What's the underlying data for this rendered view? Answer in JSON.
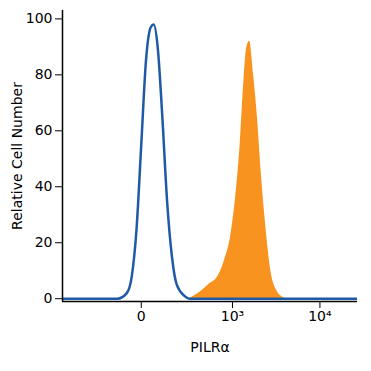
{
  "chart_data": {
    "type": "line",
    "x_label": "PILRα",
    "y_label": "Relative Cell Number",
    "log": "x",
    "x": [
      -700,
      -92,
      -49,
      -30,
      -14,
      0,
      14,
      30,
      41,
      57,
      78,
      102,
      130,
      161,
      219,
      262,
      310,
      364,
      495,
      660,
      804,
      947,
      1082,
      1237,
      1373,
      1486,
      1605,
      1782,
      1975,
      2187,
      2481,
      2815,
      3275,
      4096,
      26000
    ],
    "series": [
      {
        "type": "area",
        "color": "#f7931e",
        "values": [
          null,
          null,
          null,
          null,
          null,
          null,
          null,
          null,
          null,
          null,
          null,
          null,
          null,
          null,
          null,
          0,
          1,
          2,
          5,
          8,
          14,
          22,
          35,
          55,
          78,
          90,
          92,
          80,
          65,
          45,
          25,
          10,
          3,
          0,
          null
        ]
      },
      {
        "type": "line",
        "color": "#1f5aa6",
        "values": [
          0,
          0,
          2,
          8,
          25,
          55,
          85,
          97,
          98,
          90,
          65,
          35,
          15,
          5,
          1,
          0,
          0,
          0,
          0,
          0,
          0,
          0,
          0,
          0,
          0,
          0,
          0,
          0,
          0,
          0,
          0,
          0,
          0,
          0,
          0
        ]
      }
    ],
    "xlim": [
      -700,
      26000
    ],
    "xticks": [
      0,
      {
        "value": 1000,
        "label": "10³"
      },
      {
        "value": 10000,
        "label": "10⁴"
      }
    ],
    "ylim": [
      -1,
      103
    ],
    "yticks": [
      0,
      20,
      40,
      60,
      80,
      100
    ]
  }
}
